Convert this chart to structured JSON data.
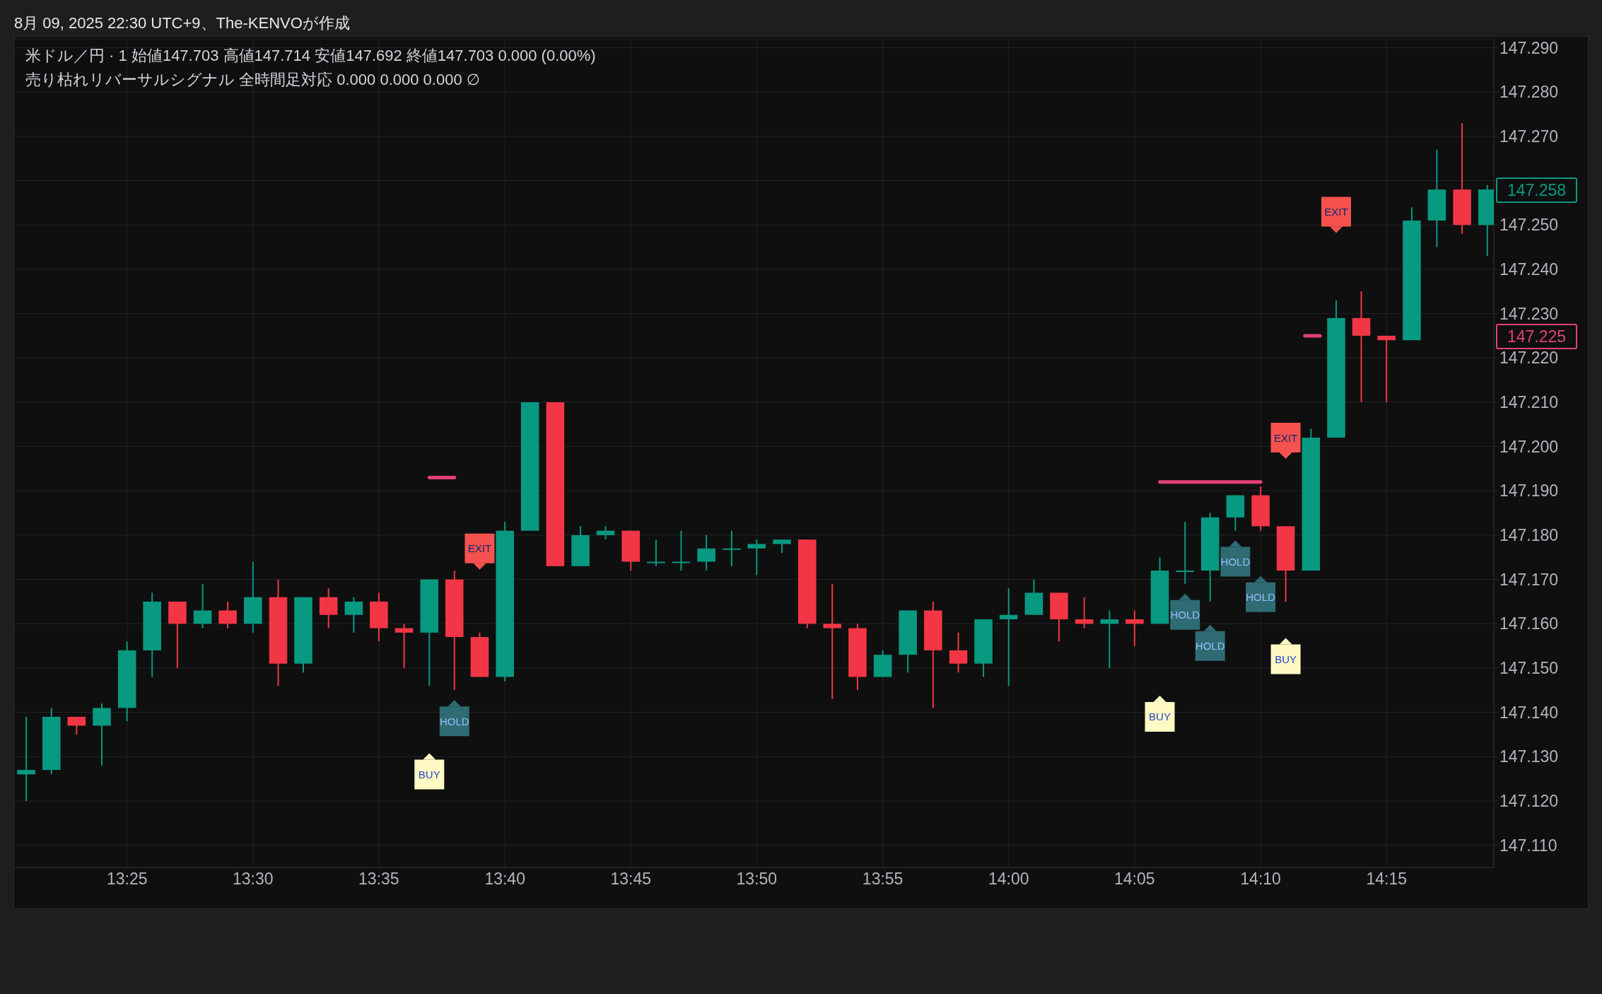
{
  "chart_data": {
    "type": "candlestick",
    "title": "米ドル／円 · 1  始値147.703  高値147.714  安値147.692  終値147.703  0.000 (0.00%)",
    "subtitle": "売り枯れリバーサルシグナル 全時間足対応  0.000  0.000  0.000  ∅",
    "annotations": [
      "8月 09, 2025 22:30 UTC+9、The-KENVOが作成",
      "147.258",
      "147.225"
    ],
    "xlim": [
      13.342,
      14.321
    ],
    "xticks": [
      {
        "value": 13.4167,
        "label": "13:25"
      },
      {
        "value": 13.5,
        "label": "13:30"
      },
      {
        "value": 13.5833,
        "label": "13:35"
      },
      {
        "value": 13.6667,
        "label": "13:40"
      },
      {
        "value": 13.75,
        "label": "13:45"
      },
      {
        "value": 13.8333,
        "label": "13:50"
      },
      {
        "value": 13.9167,
        "label": "13:55"
      },
      {
        "value": 14,
        "label": "14:00"
      },
      {
        "value": 14.0833,
        "label": "14:05"
      },
      {
        "value": 14.1667,
        "label": "14:10"
      },
      {
        "value": 14.25,
        "label": "14:15"
      }
    ],
    "ylim": [
      147.105,
      147.292
    ],
    "yticks": [
      {
        "value": 147.11,
        "label": "147.110"
      },
      {
        "value": 147.12,
        "label": "147.120"
      },
      {
        "value": 147.13,
        "label": "147.130"
      },
      {
        "value": 147.14,
        "label": "147.140"
      },
      {
        "value": 147.15,
        "label": "147.150"
      },
      {
        "value": 147.16,
        "label": "147.160"
      },
      {
        "value": 147.17,
        "label": "147.170"
      },
      {
        "value": 147.18,
        "label": "147.180"
      },
      {
        "value": 147.19,
        "label": "147.190"
      },
      {
        "value": 147.2,
        "label": "147.200"
      },
      {
        "value": 147.21,
        "label": "147.210"
      },
      {
        "value": 147.22,
        "label": "147.220"
      },
      {
        "value": 147.23,
        "label": "147.230"
      },
      {
        "value": 147.24,
        "label": "147.240"
      },
      {
        "value": 147.25,
        "label": "147.250"
      },
      {
        "value": 147.26,
        "label": null
      },
      {
        "value": 147.27,
        "label": "147.270"
      },
      {
        "value": 147.28,
        "label": "147.280"
      },
      {
        "value": 147.29,
        "label": "147.290"
      }
    ],
    "grid": true,
    "series": [
      {
        "type": "line",
        "color": "#e2407a",
        "x": [
          13.6167,
          13.6333,
          13.65,
          14.1,
          14.1167,
          14.1333,
          14.15,
          14.1667,
          14.1833,
          14.196,
          14.206
        ],
        "values": [
          147.193,
          147.193,
          null,
          147.192,
          147.192,
          147.192,
          147.192,
          147.192,
          null,
          147.225,
          147.225
        ]
      },
      {
        "type": "scatter",
        "color": "#fff9c4",
        "x": [
          13.6167,
          14.1,
          14.1833
        ],
        "values": [
          147.126,
          147.139,
          147.152
        ],
        "value_labels": [
          "BUY",
          "BUY",
          "BUY"
        ]
      },
      {
        "type": "scatter",
        "color": "#2e6b73",
        "x": [
          13.6333,
          14.1167,
          14.1333,
          14.15,
          14.1667
        ],
        "values": [
          147.138,
          147.162,
          147.155,
          147.174,
          147.166
        ],
        "value_labels": [
          "HOLD",
          "HOLD",
          "HOLD",
          "HOLD",
          "HOLD"
        ]
      },
      {
        "type": "scatter",
        "color": "#f5524f",
        "x": [
          13.65,
          14.1833,
          14.2167
        ],
        "values": [
          147.177,
          147.202,
          147.253
        ],
        "value_labels": [
          "EXIT",
          "EXIT",
          "EXIT"
        ]
      },
      {
        "x": [
          13.35,
          13.3667,
          13.3833,
          13.4,
          13.4167,
          13.4333,
          13.45,
          13.4667,
          13.4833,
          13.5,
          13.5167,
          13.5333,
          13.55,
          13.5667,
          13.5833,
          13.6,
          13.6167,
          13.6333,
          13.65,
          13.6667,
          13.6833,
          13.7,
          13.7167,
          13.7333,
          13.75,
          13.7667,
          13.7833,
          13.8,
          13.8167,
          13.8333,
          13.85,
          13.8667,
          13.8833,
          13.9,
          13.9167,
          13.9333,
          13.95,
          13.9667,
          13.9833,
          14,
          14.0167,
          14.0333,
          14.05,
          14.0667,
          14.0833,
          14.1,
          14.1167,
          14.1333,
          14.15,
          14.1667,
          14.1833,
          14.2,
          14.2167,
          14.2333,
          14.25,
          14.2667,
          14.2833,
          14.3,
          14.3167
        ],
        "ohlc": [
          [
            147.126,
            147.139,
            147.12,
            147.127
          ],
          [
            147.127,
            147.141,
            147.126,
            147.139
          ],
          [
            147.139,
            147.139,
            147.135,
            147.137
          ],
          [
            147.137,
            147.142,
            147.128,
            147.141
          ],
          [
            147.141,
            147.156,
            147.138,
            147.154
          ],
          [
            147.154,
            147.167,
            147.148,
            147.165
          ],
          [
            147.165,
            147.165,
            147.15,
            147.16
          ],
          [
            147.16,
            147.169,
            147.159,
            147.163
          ],
          [
            147.163,
            147.165,
            147.159,
            147.16
          ],
          [
            147.16,
            147.174,
            147.158,
            147.166
          ],
          [
            147.166,
            147.17,
            147.146,
            147.151
          ],
          [
            147.151,
            147.166,
            147.149,
            147.166
          ],
          [
            147.166,
            147.168,
            147.159,
            147.162
          ],
          [
            147.162,
            147.166,
            147.158,
            147.165
          ],
          [
            147.165,
            147.167,
            147.156,
            147.159
          ],
          [
            147.159,
            147.16,
            147.15,
            147.158
          ],
          [
            147.158,
            147.17,
            147.146,
            147.17
          ],
          [
            147.17,
            147.172,
            147.145,
            147.157
          ],
          [
            147.157,
            147.158,
            147.148,
            147.148
          ],
          [
            147.148,
            147.183,
            147.147,
            147.181
          ],
          [
            147.181,
            147.21,
            147.181,
            147.21
          ],
          [
            147.21,
            147.21,
            147.173,
            147.173
          ],
          [
            147.173,
            147.182,
            147.173,
            147.18
          ],
          [
            147.18,
            147.182,
            147.179,
            147.181
          ],
          [
            147.181,
            147.181,
            147.172,
            147.174
          ],
          [
            147.174,
            147.179,
            147.173,
            147.174
          ],
          [
            147.174,
            147.181,
            147.172,
            147.174
          ],
          [
            147.174,
            147.18,
            147.172,
            147.177
          ],
          [
            147.177,
            147.181,
            147.173,
            147.177
          ],
          [
            147.177,
            147.179,
            147.171,
            147.178
          ],
          [
            147.178,
            147.179,
            147.176,
            147.179
          ],
          [
            147.179,
            147.179,
            147.159,
            147.16
          ],
          [
            147.16,
            147.169,
            147.143,
            147.159
          ],
          [
            147.159,
            147.16,
            147.145,
            147.148
          ],
          [
            147.148,
            147.154,
            147.148,
            147.153
          ],
          [
            147.153,
            147.163,
            147.149,
            147.163
          ],
          [
            147.163,
            147.165,
            147.141,
            147.154
          ],
          [
            147.154,
            147.158,
            147.149,
            147.151
          ],
          [
            147.151,
            147.161,
            147.148,
            147.161
          ],
          [
            147.161,
            147.168,
            147.146,
            147.162
          ],
          [
            147.162,
            147.17,
            147.162,
            147.167
          ],
          [
            147.167,
            147.167,
            147.156,
            147.161
          ],
          [
            147.161,
            147.166,
            147.159,
            147.16
          ],
          [
            147.16,
            147.163,
            147.15,
            147.161
          ],
          [
            147.161,
            147.163,
            147.155,
            147.16
          ],
          [
            147.16,
            147.175,
            147.16,
            147.172
          ],
          [
            147.172,
            147.183,
            147.169,
            147.172
          ],
          [
            147.172,
            147.185,
            147.165,
            147.184
          ],
          [
            147.184,
            147.189,
            147.181,
            147.189
          ],
          [
            147.189,
            147.191,
            147.181,
            147.182
          ],
          [
            147.182,
            147.182,
            147.165,
            147.172
          ],
          [
            147.172,
            147.204,
            147.172,
            147.202
          ],
          [
            147.202,
            147.233,
            147.202,
            147.229
          ],
          [
            147.229,
            147.235,
            147.21,
            147.225
          ],
          [
            147.225,
            147.225,
            147.21,
            147.224
          ],
          [
            147.224,
            147.254,
            147.224,
            147.251
          ],
          [
            147.251,
            147.267,
            147.245,
            147.258
          ],
          [
            147.258,
            147.273,
            147.248,
            147.25
          ],
          [
            147.25,
            147.259,
            147.243,
            147.258
          ]
        ],
        "colors": [
          "#089981",
          "#089981",
          "#f23645",
          "#089981",
          "#089981",
          "#089981",
          "#f23645",
          "#089981",
          "#f23645",
          "#089981",
          "#f23645",
          "#089981",
          "#f23645",
          "#089981",
          "#f23645",
          "#f23645",
          "#089981",
          "#f23645",
          "#f23645",
          "#089981",
          "#089981",
          "#f23645",
          "#089981",
          "#089981",
          "#f23645",
          "#089981",
          "#089981",
          "#089981",
          "#089981",
          "#089981",
          "#089981",
          "#f23645",
          "#f23645",
          "#f23645",
          "#089981",
          "#089981",
          "#f23645",
          "#f23645",
          "#089981",
          "#089981",
          "#089981",
          "#f23645",
          "#f23645",
          "#089981",
          "#f23645",
          "#089981",
          "#089981",
          "#089981",
          "#089981",
          "#f23645",
          "#f23645",
          "#089981",
          "#089981",
          "#f23645",
          "#f23645",
          "#089981",
          "#089981",
          "#f23645",
          "#089981"
        ]
      }
    ]
  }
}
